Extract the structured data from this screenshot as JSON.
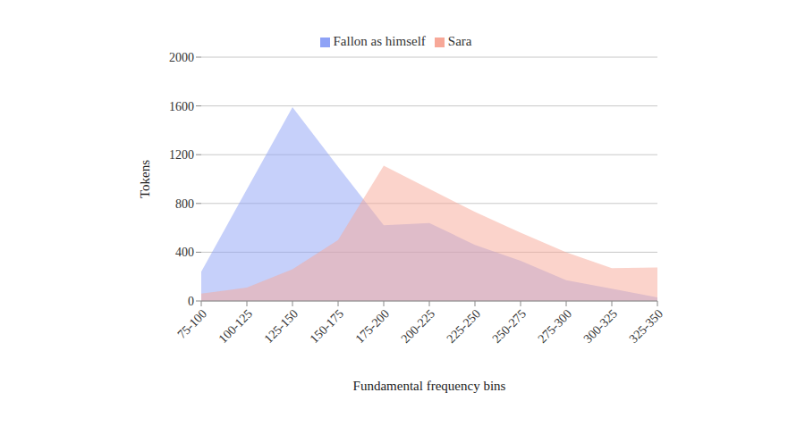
{
  "chart_data": {
    "type": "area",
    "xlabel": "Fundamental frequency bins",
    "ylabel": "Tokens",
    "categories": [
      "75-100",
      "100-125",
      "125-150",
      "150-175",
      "175-200",
      "200-225",
      "225-250",
      "250-275",
      "275-300",
      "300-325",
      "325-350"
    ],
    "series": [
      {
        "name": "Sara",
        "color": "#f7a898",
        "values": [
          60,
          110,
          260,
          500,
          1110,
          920,
          730,
          560,
          400,
          270,
          275
        ]
      },
      {
        "name": "Fallon as himself",
        "color": "#8ea2f6",
        "values": [
          240,
          915,
          1590,
          1100,
          620,
          640,
          460,
          330,
          170,
          100,
          30
        ]
      }
    ],
    "ylim": [
      0,
      2000
    ],
    "yticks": [
      0,
      400,
      800,
      1200,
      1600,
      2000
    ],
    "grid": true,
    "legend": "top"
  }
}
